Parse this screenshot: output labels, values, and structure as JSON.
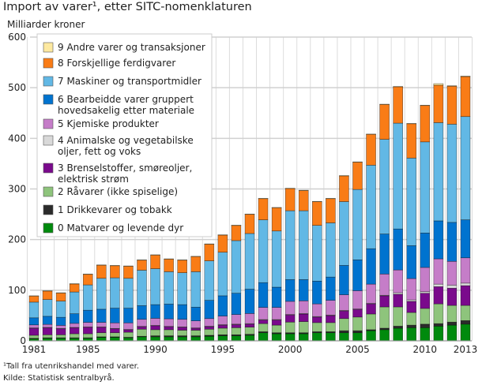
{
  "chart_data": {
    "type": "bar",
    "stacked": true,
    "title": "Import av varer¹, etter SITC-nomenklaturen",
    "ylabel": "Milliarder kroner",
    "xlabel": "",
    "ylim": [
      0,
      600
    ],
    "yticks": [
      0,
      100,
      200,
      300,
      400,
      500,
      600
    ],
    "xticks": [
      "1981",
      "1985",
      "1990",
      "1995",
      "2000",
      "2005",
      "2010",
      "2013"
    ],
    "grid": true,
    "legend": "top-left",
    "categories": [
      "1981",
      "1982",
      "1983",
      "1984",
      "1985",
      "1986",
      "1987",
      "1988",
      "1989",
      "1990",
      "1991",
      "1992",
      "1993",
      "1994",
      "1995",
      "1996",
      "1997",
      "1998",
      "1999",
      "2000",
      "2001",
      "2002",
      "2003",
      "2004",
      "2005",
      "2006",
      "2007",
      "2008",
      "2009",
      "2010",
      "2011",
      "2012",
      "2013"
    ],
    "series": [
      {
        "name": "0 Matvarer og levende dyr",
        "color": "#008a0d",
        "values": [
          4,
          5,
          5,
          5,
          5,
          7,
          7,
          6,
          8,
          8,
          8,
          8,
          8,
          9,
          10,
          10,
          11,
          16,
          14,
          14,
          14,
          16,
          16,
          16,
          16,
          20,
          22,
          25,
          26,
          26,
          29,
          31,
          33
        ]
      },
      {
        "name": "1 Drikkevarer og tobakk",
        "color": "#2b2b2b",
        "values": [
          1,
          1,
          1,
          1,
          1,
          1,
          1,
          1,
          1,
          2,
          2,
          2,
          2,
          2,
          2,
          2,
          2,
          2,
          2,
          2,
          2,
          2,
          2,
          4,
          4,
          2,
          3,
          4,
          5,
          7,
          5,
          6,
          7
        ]
      },
      {
        "name": "2 Råvarer (ikke spiselige)",
        "color": "#8ec47c",
        "values": [
          6,
          6,
          6,
          8,
          8,
          8,
          8,
          10,
          14,
          12,
          12,
          11,
          11,
          12,
          13,
          14,
          14,
          16,
          15,
          21,
          22,
          18,
          18,
          24,
          27,
          31,
          42,
          38,
          25,
          31,
          39,
          33,
          30
        ]
      },
      {
        "name": "3 Brenselstoffer, smøreoljer, elektrisk strøm",
        "color": "#7a0a8c",
        "values": [
          14,
          14,
          12,
          12,
          13,
          11,
          8,
          5,
          5,
          8,
          6,
          6,
          4,
          5,
          6,
          6,
          6,
          7,
          10,
          14,
          15,
          11,
          14,
          15,
          15,
          20,
          22,
          25,
          22,
          30,
          34,
          34,
          39
        ]
      },
      {
        "name": "4 Animalske og vegetabilske oljer, fett og voks",
        "color": "#d9d9d9",
        "values": [
          0.5,
          0.5,
          0.5,
          0.5,
          0.5,
          0.5,
          0.5,
          0.5,
          0.5,
          0.5,
          0.5,
          0.5,
          0.5,
          1,
          1,
          1,
          1,
          1,
          1,
          1,
          1,
          1,
          1,
          1,
          1,
          1,
          1,
          3,
          3,
          3,
          5,
          6,
          5
        ]
      },
      {
        "name": "5 Kjemiske produkter",
        "color": "#c57dc8",
        "values": [
          6,
          6,
          6,
          8,
          9,
          9,
          11,
          13,
          14,
          14,
          15,
          15,
          14,
          15,
          17,
          19,
          20,
          24,
          24,
          26,
          25,
          25,
          29,
          31,
          36,
          38,
          42,
          45,
          42,
          48,
          50,
          47,
          50
        ]
      },
      {
        "name": "6 Bearbeidde varer gruppert hovedsakelig etter materiale",
        "color": "#0073cf",
        "values": [
          14,
          16,
          16,
          19,
          24,
          26,
          29,
          29,
          27,
          27,
          29,
          29,
          27,
          36,
          40,
          42,
          48,
          49,
          40,
          43,
          42,
          45,
          46,
          58,
          61,
          70,
          79,
          81,
          65,
          68,
          75,
          77,
          75
        ]
      },
      {
        "name": "7 Maskiner og transportmidler",
        "color": "#62b8e5",
        "values": [
          31,
          33,
          32,
          43,
          50,
          61,
          60,
          59,
          70,
          71,
          64,
          63,
          70,
          78,
          86,
          104,
          110,
          124,
          111,
          136,
          136,
          110,
          107,
          126,
          139,
          165,
          187,
          209,
          173,
          180,
          194,
          194,
          204
        ]
      },
      {
        "name": "8 Forskjellige ferdigvarer",
        "color": "#f97c16",
        "values": [
          12,
          17,
          16,
          16,
          21,
          26,
          24,
          24,
          20,
          27,
          25,
          25,
          30,
          33,
          34,
          30,
          38,
          42,
          46,
          44,
          40,
          47,
          48,
          51,
          54,
          61,
          69,
          72,
          68,
          72,
          74,
          75,
          79
        ]
      },
      {
        "name": "9 Andre varer og transaksjoner",
        "color": "#fde9a0",
        "values": [
          0.5,
          0.5,
          0.5,
          0.5,
          0.5,
          0.5,
          0.5,
          0.5,
          0.5,
          0.5,
          0.5,
          0.5,
          0.5,
          0.5,
          0.5,
          0.5,
          0.5,
          0.5,
          0.5,
          0.5,
          0.5,
          0.5,
          0.5,
          0.5,
          0.5,
          0.5,
          0.5,
          0.5,
          0.5,
          0.5,
          3,
          1,
          1
        ]
      }
    ],
    "legend_lines": [
      [
        "9 Andre varer og transaksjoner"
      ],
      [
        "8 Forskjellige ferdigvarer"
      ],
      [
        "7 Maskiner og transportmidler"
      ],
      [
        "6 Bearbeidde varer gruppert",
        "hovedsakelig etter materiale"
      ],
      [
        "5 Kjemiske produkter"
      ],
      [
        "4 Animalske og vegetabilske",
        "oljer, fett og voks"
      ],
      [
        "3 Brenselstoffer, smøreoljer,",
        "elektrisk strøm"
      ],
      [
        "2 Råvarer (ikke spiselige)"
      ],
      [
        "1 Drikkevarer og tobakk"
      ],
      [
        "0 Matvarer og levende dyr"
      ]
    ]
  },
  "footnote": "¹Tall fra utenrikshandel med varer.",
  "source": "Kilde: Statistisk sentralbyrå."
}
